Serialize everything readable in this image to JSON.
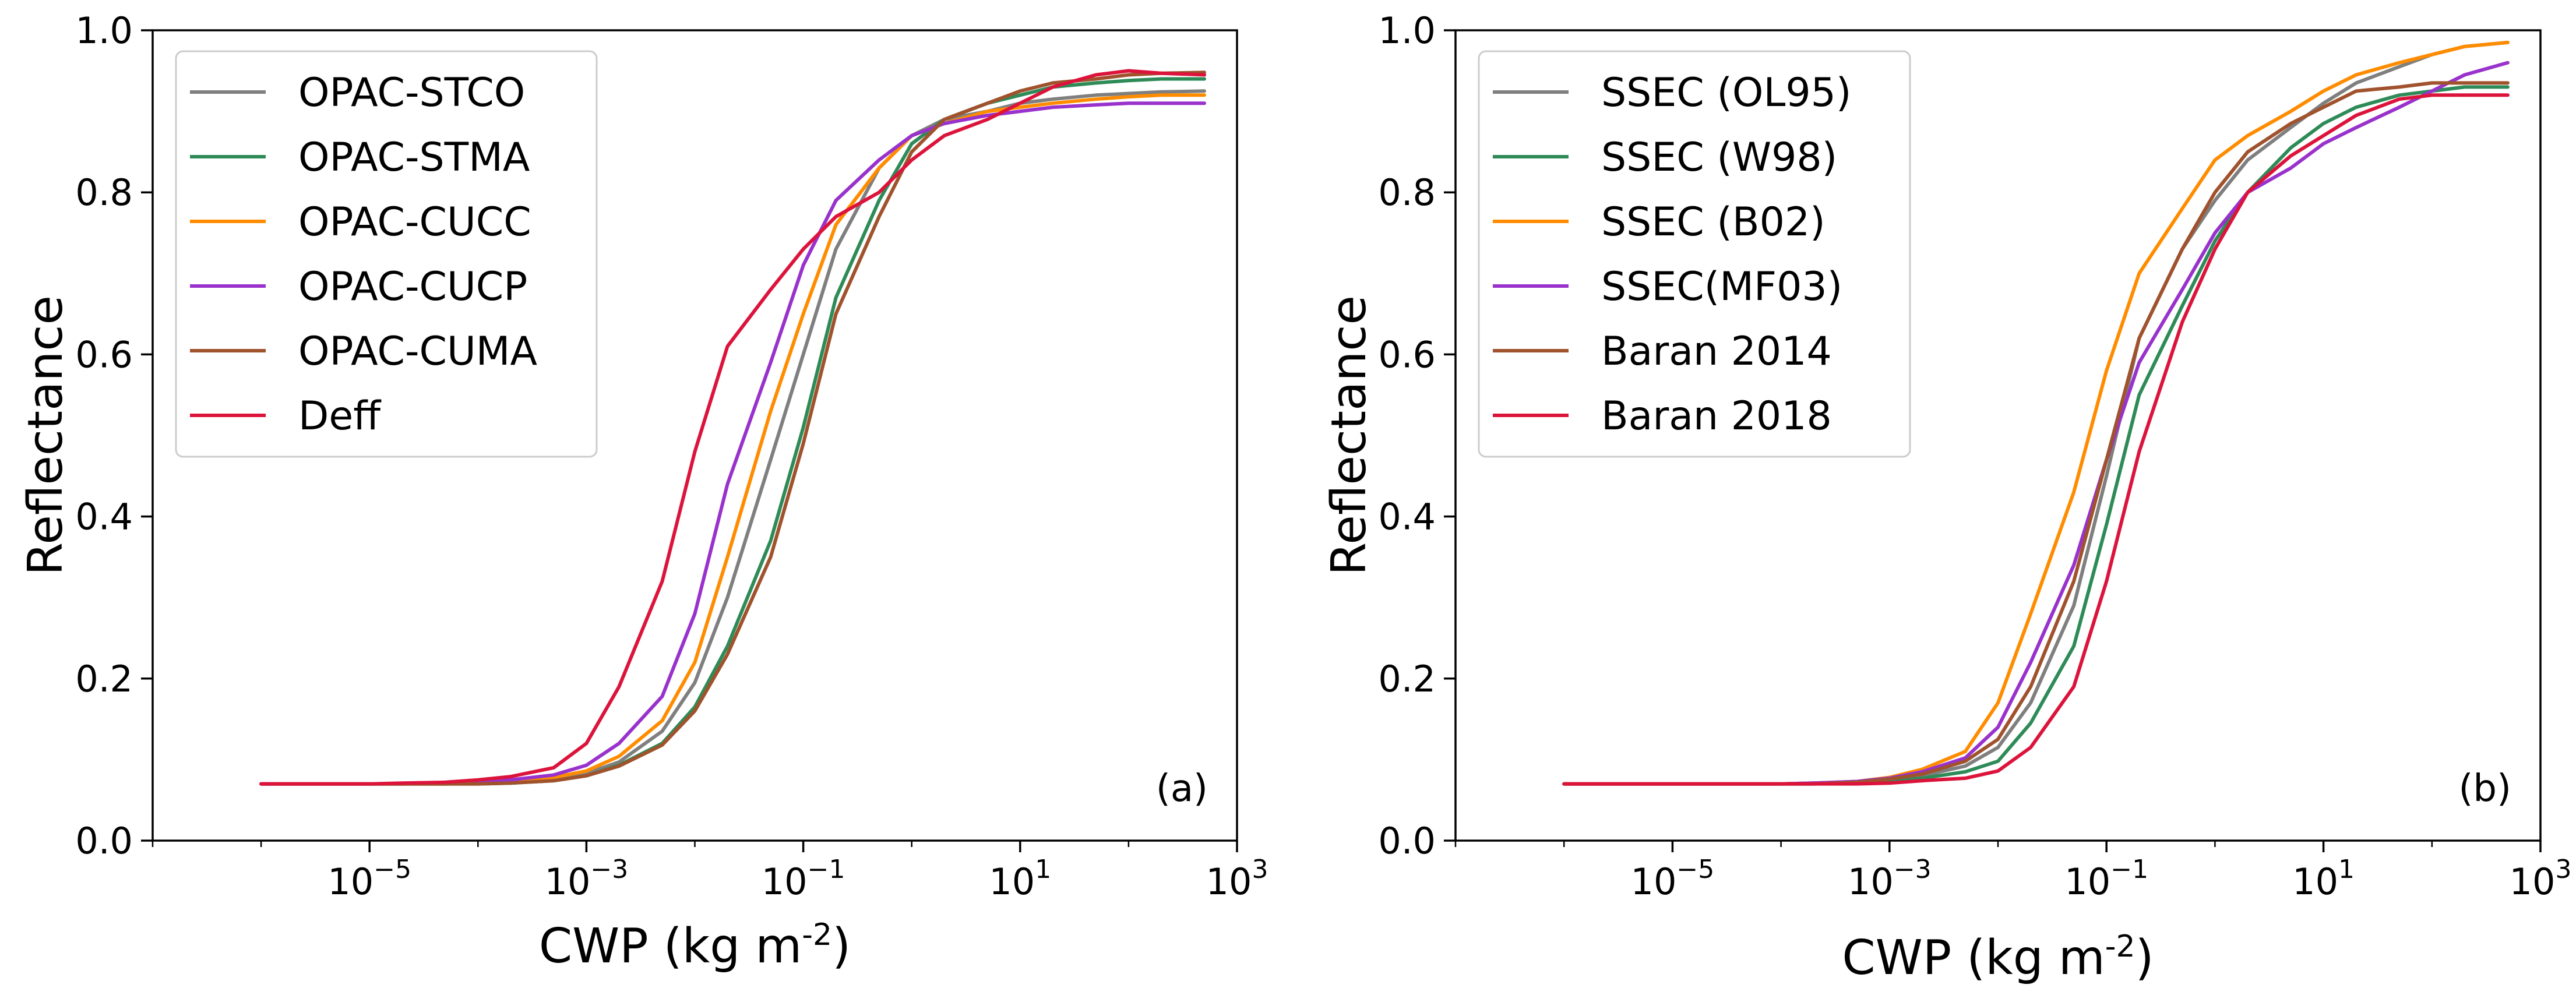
{
  "chart_data": [
    {
      "type": "line",
      "panel_label": "(a)",
      "xlabel": "CWP (kg m",
      "xlabel_sup": "-2",
      "xlabel_end": ")",
      "ylabel": "Reflectance",
      "xscale": "log",
      "xlim": [
        1e-07,
        1000
      ],
      "ylim": [
        0,
        1
      ],
      "x_ticks": [
        {
          "value": 1e-05,
          "base": "10",
          "exp": "−5"
        },
        {
          "value": 0.001,
          "base": "10",
          "exp": "−3"
        },
        {
          "value": 0.1,
          "base": "10",
          "exp": "−1"
        },
        {
          "value": 10,
          "base": "10",
          "exp": "1"
        },
        {
          "value": 1000,
          "base": "10",
          "exp": "3"
        }
      ],
      "y_ticks": [
        "0.0",
        "0.2",
        "0.4",
        "0.6",
        "0.8",
        "1.0"
      ],
      "grid": false,
      "legend_position": "top-left",
      "x": [
        1e-06,
        2e-06,
        5e-06,
        1e-05,
        2e-05,
        5e-05,
        0.0001,
        0.0002,
        0.0005,
        0.001,
        0.002,
        0.005,
        0.01,
        0.02,
        0.05,
        0.1,
        0.2,
        0.5,
        1,
        2,
        5,
        10,
        20,
        50,
        100,
        200,
        500
      ],
      "series": [
        {
          "name": "OPAC-STCO",
          "color": "#7f7f7f",
          "values": [
            0.07,
            0.07,
            0.07,
            0.07,
            0.07,
            0.07,
            0.071,
            0.072,
            0.076,
            0.083,
            0.097,
            0.135,
            0.195,
            0.3,
            0.47,
            0.6,
            0.73,
            0.83,
            0.87,
            0.89,
            0.9,
            0.91,
            0.915,
            0.92,
            0.922,
            0.924,
            0.925
          ]
        },
        {
          "name": "OPAC-STMA",
          "color": "#2e8b57",
          "values": [
            0.07,
            0.07,
            0.07,
            0.07,
            0.07,
            0.07,
            0.07,
            0.071,
            0.074,
            0.08,
            0.093,
            0.12,
            0.165,
            0.24,
            0.37,
            0.51,
            0.67,
            0.79,
            0.86,
            0.89,
            0.91,
            0.92,
            0.93,
            0.935,
            0.938,
            0.94,
            0.94
          ]
        },
        {
          "name": "OPAC-CUCC",
          "color": "#ff8c00",
          "values": [
            0.07,
            0.07,
            0.07,
            0.07,
            0.07,
            0.07,
            0.071,
            0.073,
            0.078,
            0.086,
            0.104,
            0.148,
            0.22,
            0.35,
            0.53,
            0.65,
            0.76,
            0.83,
            0.87,
            0.885,
            0.9,
            0.905,
            0.91,
            0.915,
            0.918,
            0.92,
            0.92
          ]
        },
        {
          "name": "OPAC-CUCP",
          "color": "#9932cc",
          "values": [
            0.07,
            0.07,
            0.07,
            0.07,
            0.07,
            0.071,
            0.072,
            0.075,
            0.081,
            0.093,
            0.12,
            0.178,
            0.28,
            0.44,
            0.59,
            0.71,
            0.79,
            0.84,
            0.87,
            0.885,
            0.895,
            0.9,
            0.905,
            0.908,
            0.91,
            0.91,
            0.91
          ]
        },
        {
          "name": "OPAC-CUMA",
          "color": "#a0522d",
          "values": [
            0.07,
            0.07,
            0.07,
            0.07,
            0.07,
            0.07,
            0.07,
            0.071,
            0.074,
            0.08,
            0.092,
            0.118,
            0.16,
            0.23,
            0.35,
            0.49,
            0.65,
            0.77,
            0.85,
            0.89,
            0.91,
            0.925,
            0.935,
            0.94,
            0.945,
            0.947,
            0.948
          ]
        },
        {
          "name": "Deff",
          "color": "#dc143c",
          "values": [
            0.07,
            0.07,
            0.07,
            0.07,
            0.071,
            0.072,
            0.075,
            0.079,
            0.09,
            0.12,
            0.19,
            0.32,
            0.48,
            0.61,
            0.68,
            0.73,
            0.77,
            0.8,
            0.84,
            0.87,
            0.89,
            0.91,
            0.93,
            0.945,
            0.95,
            0.947,
            0.945
          ]
        }
      ]
    },
    {
      "type": "line",
      "panel_label": "(b)",
      "xlabel": "CWP (kg m",
      "xlabel_sup": "-2",
      "xlabel_end": ")",
      "ylabel": "Reflectance",
      "xscale": "log",
      "xlim": [
        1e-07,
        1000
      ],
      "ylim": [
        0,
        1
      ],
      "x_ticks": [
        {
          "value": 1e-05,
          "base": "10",
          "exp": "−5"
        },
        {
          "value": 0.001,
          "base": "10",
          "exp": "−3"
        },
        {
          "value": 0.1,
          "base": "10",
          "exp": "−1"
        },
        {
          "value": 10,
          "base": "10",
          "exp": "1"
        },
        {
          "value": 1000,
          "base": "10",
          "exp": "3"
        }
      ],
      "y_ticks": [
        "0.0",
        "0.2",
        "0.4",
        "0.6",
        "0.8",
        "1.0"
      ],
      "grid": false,
      "legend_position": "top-left",
      "x": [
        1e-06,
        2e-06,
        5e-06,
        1e-05,
        2e-05,
        5e-05,
        0.0001,
        0.0002,
        0.0005,
        0.001,
        0.002,
        0.005,
        0.01,
        0.02,
        0.05,
        0.1,
        0.2,
        0.5,
        1,
        2,
        5,
        10,
        20,
        50,
        100,
        200,
        500
      ],
      "series": [
        {
          "name": "SSEC (OL95)",
          "color": "#7f7f7f",
          "values": [
            0.07,
            0.07,
            0.07,
            0.07,
            0.07,
            0.07,
            0.07,
            0.071,
            0.072,
            0.075,
            0.08,
            0.092,
            0.115,
            0.17,
            0.29,
            0.45,
            0.62,
            0.73,
            0.79,
            0.84,
            0.88,
            0.91,
            0.935,
            0.955,
            0.97,
            0.98,
            0.985
          ]
        },
        {
          "name": "SSEC (W98)",
          "color": "#2e8b57",
          "values": [
            0.07,
            0.07,
            0.07,
            0.07,
            0.07,
            0.07,
            0.07,
            0.07,
            0.071,
            0.073,
            0.077,
            0.085,
            0.098,
            0.145,
            0.24,
            0.39,
            0.55,
            0.66,
            0.74,
            0.8,
            0.855,
            0.885,
            0.905,
            0.92,
            0.925,
            0.93,
            0.93
          ]
        },
        {
          "name": "SSEC (B02)",
          "color": "#ff8c00",
          "values": [
            0.07,
            0.07,
            0.07,
            0.07,
            0.07,
            0.07,
            0.07,
            0.071,
            0.073,
            0.078,
            0.088,
            0.11,
            0.17,
            0.28,
            0.43,
            0.58,
            0.7,
            0.78,
            0.84,
            0.87,
            0.9,
            0.925,
            0.945,
            0.96,
            0.97,
            0.98,
            0.985
          ]
        },
        {
          "name": "SSEC(MF03)",
          "color": "#9932cc",
          "values": [
            0.07,
            0.07,
            0.07,
            0.07,
            0.07,
            0.07,
            0.07,
            0.071,
            0.073,
            0.077,
            0.085,
            0.102,
            0.14,
            0.22,
            0.34,
            0.47,
            0.59,
            0.68,
            0.75,
            0.8,
            0.83,
            0.86,
            0.88,
            0.905,
            0.925,
            0.945,
            0.96
          ]
        },
        {
          "name": "Baran 2014",
          "color": "#a0522d",
          "values": [
            0.07,
            0.07,
            0.07,
            0.07,
            0.07,
            0.07,
            0.07,
            0.07,
            0.072,
            0.076,
            0.082,
            0.098,
            0.125,
            0.19,
            0.32,
            0.47,
            0.62,
            0.73,
            0.8,
            0.85,
            0.885,
            0.905,
            0.925,
            0.93,
            0.935,
            0.935,
            0.935
          ]
        },
        {
          "name": "Baran 2018",
          "color": "#dc143c",
          "values": [
            0.07,
            0.07,
            0.07,
            0.07,
            0.07,
            0.07,
            0.07,
            0.07,
            0.07,
            0.071,
            0.074,
            0.077,
            0.086,
            0.115,
            0.19,
            0.32,
            0.48,
            0.64,
            0.73,
            0.8,
            0.845,
            0.87,
            0.895,
            0.915,
            0.92,
            0.92,
            0.92
          ]
        }
      ]
    }
  ]
}
